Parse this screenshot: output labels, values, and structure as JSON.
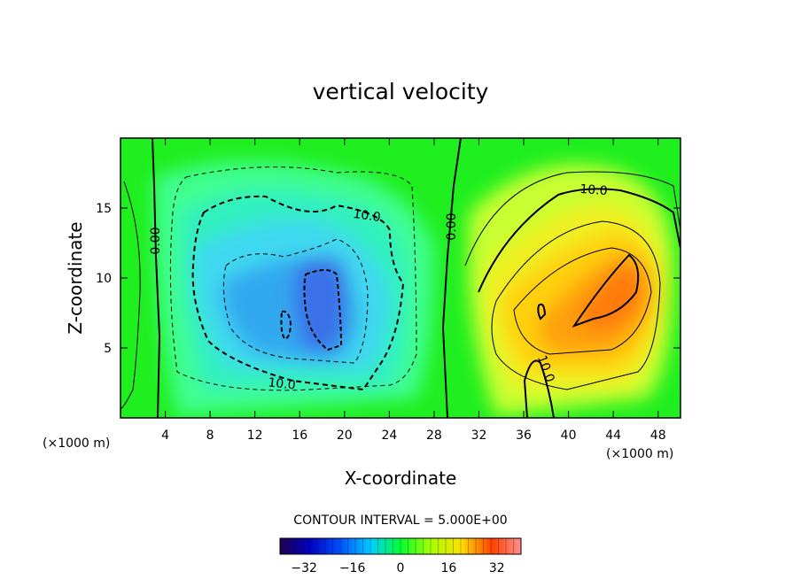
{
  "chart_data": {
    "type": "heatmap",
    "title": "vertical velocity",
    "xlabel": "X-coordinate",
    "ylabel": "Z-coordinate",
    "x_unit": "(×1000 m)",
    "z_unit": "(×1000 m)",
    "xlim": [
      0,
      50
    ],
    "zlim": [
      0,
      20
    ],
    "x_ticks": [
      4,
      8,
      12,
      16,
      20,
      24,
      28,
      32,
      36,
      40,
      44,
      48
    ],
    "z_ticks": [
      5,
      10,
      15
    ],
    "contour_interval_text": "CONTOUR INTERVAL = 5.000E+00",
    "colorbar": {
      "range": [
        -40,
        40
      ],
      "ticks": [
        -32,
        -16,
        0,
        16,
        32
      ],
      "tick_labels": [
        "−32",
        "−16",
        "0",
        "16",
        "32"
      ]
    },
    "contour_labels": [
      "0.00",
      "0.00",
      "10.0",
      "10.0",
      "10.0",
      "10.0"
    ],
    "features": [
      {
        "kind": "downdraft",
        "x": 18,
        "z": 8,
        "peak": -30
      },
      {
        "kind": "updraft",
        "x": 44,
        "z": 10,
        "peak": 28
      }
    ],
    "colors": {
      "background": "#00ff00",
      "min": "#200050",
      "max": "#ff8080"
    }
  }
}
